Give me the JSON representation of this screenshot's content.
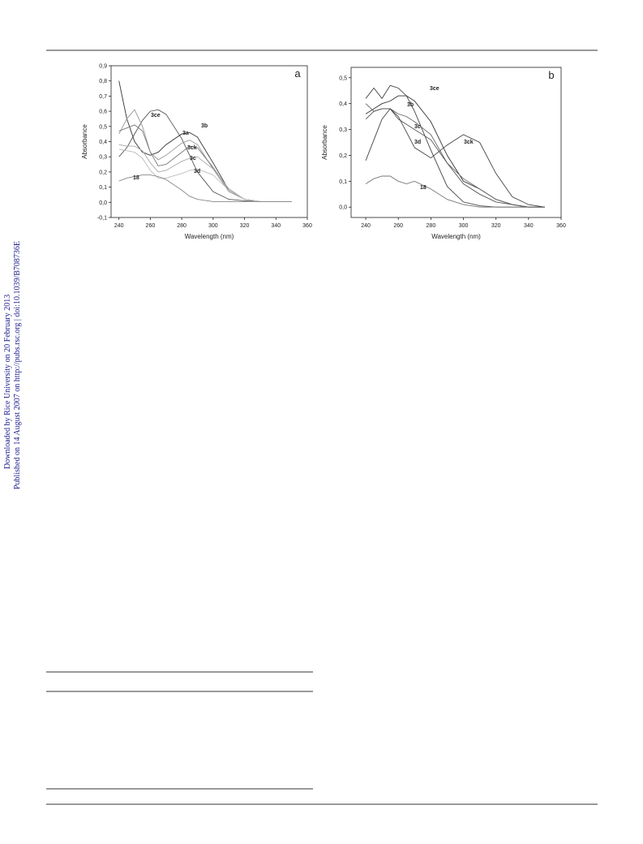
{
  "sidebar": {
    "downloaded": "Downloaded by Rice University on 20 February 2013",
    "published": "Published on 14 August 2007 on http://pubs.rsc.org | doi:10.1039/B708736E"
  },
  "chart_data": [
    {
      "type": "line",
      "panel_label": "a",
      "xlabel": "Wavelength (nm)",
      "ylabel": "Absorbance",
      "x": [
        240,
        245,
        250,
        255,
        260,
        265,
        270,
        280,
        285,
        290,
        300,
        310,
        320,
        330,
        340,
        350
      ],
      "xlim": [
        235,
        360
      ],
      "xticks": [
        240,
        260,
        280,
        300,
        320,
        340,
        360
      ],
      "ylim": [
        -0.1,
        0.9
      ],
      "yticks": [
        {
          "value": -0.1,
          "label": "-0,1"
        },
        {
          "value": 0,
          "label": "0,0"
        },
        {
          "value": 0.1,
          "label": "0,1"
        },
        {
          "value": 0.2,
          "label": "0,2"
        },
        {
          "value": 0.3,
          "label": "0,3"
        },
        {
          "value": 0.4,
          "label": "0,4"
        },
        {
          "value": 0.5,
          "label": "0,5"
        },
        {
          "value": 0.6,
          "label": "0,6"
        },
        {
          "value": 0.7,
          "label": "0,7"
        },
        {
          "value": 0.8,
          "label": "0,8"
        },
        {
          "value": 0.9,
          "label": "0,9"
        }
      ],
      "series": [
        {
          "name": "3ce",
          "color": "#555555",
          "values": [
            0.3,
            0.36,
            0.45,
            0.54,
            0.6,
            0.61,
            0.58,
            0.42,
            0.31,
            0.2,
            0.07,
            0.02,
            0.01,
            0.005,
            0.005,
            0.005
          ]
        },
        {
          "name": "3b",
          "color": "#333333",
          "values": [
            0.8,
            0.55,
            0.4,
            0.33,
            0.31,
            0.33,
            0.38,
            0.45,
            0.46,
            0.43,
            0.26,
            0.08,
            0.02,
            0.005,
            0.005,
            0.005
          ]
        },
        {
          "name": "3a",
          "color": "#999999",
          "values": [
            0.45,
            0.55,
            0.61,
            0.5,
            0.33,
            0.28,
            0.31,
            0.39,
            0.41,
            0.38,
            0.22,
            0.07,
            0.02,
            0.005,
            0.005,
            0.005
          ]
        },
        {
          "name": "3ck",
          "color": "#777777",
          "values": [
            0.47,
            0.49,
            0.51,
            0.47,
            0.33,
            0.24,
            0.25,
            0.33,
            0.37,
            0.36,
            0.23,
            0.08,
            0.02,
            0.005,
            0.005,
            0.005
          ]
        },
        {
          "name": "3c",
          "color": "#aaaaaa",
          "values": [
            0.38,
            0.37,
            0.37,
            0.34,
            0.26,
            0.2,
            0.21,
            0.27,
            0.29,
            0.3,
            0.22,
            0.09,
            0.02,
            0.005,
            0.005,
            0.005
          ]
        },
        {
          "name": "3d",
          "color": "#bbbbbb",
          "values": [
            0.35,
            0.34,
            0.33,
            0.29,
            0.21,
            0.16,
            0.16,
            0.19,
            0.21,
            0.22,
            0.18,
            0.08,
            0.02,
            0.005,
            0.005,
            0.005
          ]
        },
        {
          "name": "18",
          "color": "#888888",
          "values": [
            0.14,
            0.16,
            0.17,
            0.18,
            0.18,
            0.17,
            0.15,
            0.08,
            0.04,
            0.02,
            0.005,
            0.005,
            0.005,
            0.005,
            0.005,
            0.005
          ]
        }
      ]
    },
    {
      "type": "line",
      "panel_label": "b",
      "xlabel": "Wavelength (nm)",
      "ylabel": "Absorbance",
      "x": [
        240,
        245,
        250,
        255,
        260,
        265,
        270,
        280,
        290,
        300,
        310,
        320,
        330,
        340,
        350
      ],
      "xlim": [
        231,
        360
      ],
      "xticks": [
        240,
        260,
        280,
        300,
        320,
        340,
        360
      ],
      "ylim": [
        -0.04,
        0.54
      ],
      "yticks": [
        {
          "value": 0,
          "label": "0,0"
        },
        {
          "value": 0.1,
          "label": "0,1"
        },
        {
          "value": 0.2,
          "label": "0,2"
        },
        {
          "value": 0.3,
          "label": "0,3"
        },
        {
          "value": 0.4,
          "label": "0,4"
        },
        {
          "value": 0.5,
          "label": "0,5"
        }
      ],
      "series": [
        {
          "name": "3ce",
          "color": "#444444",
          "values": [
            0.42,
            0.46,
            0.42,
            0.47,
            0.46,
            0.43,
            0.37,
            0.22,
            0.08,
            0.02,
            0.005,
            0,
            0,
            0,
            0
          ]
        },
        {
          "name": "3b",
          "color": "#333333",
          "values": [
            0.36,
            0.38,
            0.4,
            0.41,
            0.43,
            0.43,
            0.41,
            0.33,
            0.2,
            0.1,
            0.07,
            0.03,
            0.01,
            0,
            0
          ]
        },
        {
          "name": "3c",
          "color": "#666666",
          "values": [
            0.4,
            0.37,
            0.38,
            0.38,
            0.36,
            0.35,
            0.33,
            0.28,
            0.17,
            0.11,
            0.07,
            0.03,
            0.01,
            0,
            0
          ]
        },
        {
          "name": "3d",
          "color": "#555555",
          "values": [
            0.34,
            0.37,
            0.38,
            0.38,
            0.34,
            0.32,
            0.3,
            0.26,
            0.17,
            0.09,
            0.05,
            0.02,
            0.01,
            0,
            0
          ]
        },
        {
          "name": "3ck",
          "color": "#444444",
          "values": [
            0.18,
            0.26,
            0.34,
            0.38,
            0.35,
            0.29,
            0.23,
            0.19,
            0.24,
            0.28,
            0.25,
            0.13,
            0.04,
            0.01,
            0
          ]
        },
        {
          "name": "18",
          "color": "#777777",
          "values": [
            0.09,
            0.11,
            0.12,
            0.12,
            0.1,
            0.09,
            0.1,
            0.07,
            0.03,
            0.01,
            0,
            0,
            0,
            0,
            0
          ]
        }
      ]
    }
  ]
}
